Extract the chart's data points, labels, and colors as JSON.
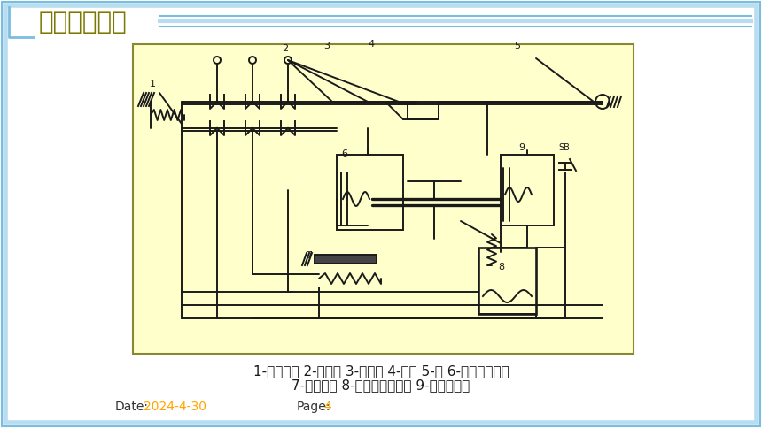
{
  "bg_color": "#ffffff",
  "border_color_light": "#b8ddf0",
  "border_color_dark": "#7bbde0",
  "title": "常用低压电器",
  "title_color": "#7a7a00",
  "title_font_size": 20,
  "caption_line1": "1-分闸弹簧 2-主触头 3-传动杆 4-锁扣 5-轴 6-过电流脱扣器",
  "caption_line2": "7-热脱扣器 8-欠压失压脱扣器 9-分励脱扣器",
  "caption_color": "#1a1a1a",
  "caption_font_size": 11,
  "date_label": "Date:",
  "date_value": "2024-4-30",
  "date_color": "#ffa500",
  "page_label": "Page:",
  "page_value": "4",
  "page_color": "#ffa500",
  "footer_font_size": 10,
  "diagram_bg": "#ffffcc",
  "diagram_color": "#1a1a1a"
}
